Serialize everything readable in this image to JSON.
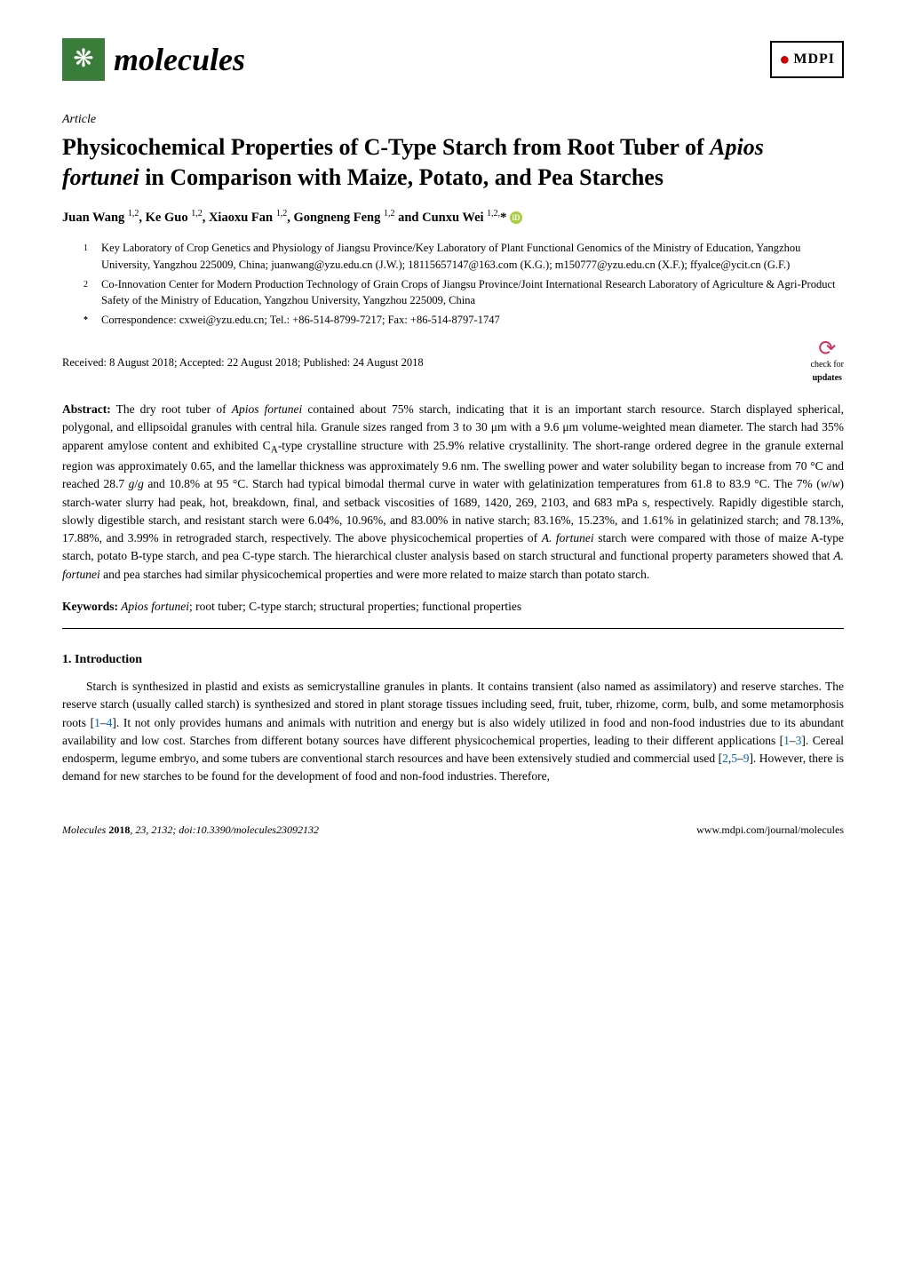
{
  "header": {
    "journal_name": "molecules",
    "publisher": "MDPI"
  },
  "article": {
    "type": "Article",
    "title_part1": "Physicochemical Properties of C-Type Starch from Root Tuber of ",
    "title_italic": "Apios fortunei",
    "title_part2": " in Comparison with Maize, Potato, and Pea Starches",
    "authors_line": "Juan Wang ",
    "author1_sup": "1,2",
    "author2": ", Ke Guo ",
    "author2_sup": "1,2",
    "author3": ", Xiaoxu Fan ",
    "author3_sup": "1,2",
    "author4": ", Gongneng Feng ",
    "author4_sup": "1,2",
    "author5": " and Cunxu Wei ",
    "author5_sup": "1,2,"
  },
  "affiliations": {
    "a1_num": "1",
    "a1_text": "Key Laboratory of Crop Genetics and Physiology of Jiangsu Province/Key Laboratory of Plant Functional Genomics of the Ministry of Education, Yangzhou University, Yangzhou 225009, China; juanwang@yzu.edu.cn (J.W.); 18115657147@163.com (K.G.); m150777@yzu.edu.cn (X.F.); ffyalce@ycit.cn (G.F.)",
    "a2_num": "2",
    "a2_text": "Co-Innovation Center for Modern Production Technology of Grain Crops of Jiangsu Province/Joint International Research Laboratory of Agriculture & Agri-Product Safety of the Ministry of Education, Yangzhou University, Yangzhou 225009, China",
    "corr_sym": "*",
    "corr_text": "Correspondence: cxwei@yzu.edu.cn; Tel.: +86-514-8799-7217; Fax: +86-514-8797-1747"
  },
  "dates": "Received: 8 August 2018; Accepted: 22 August 2018; Published: 24 August 2018",
  "check_updates": {
    "line1": "check for",
    "line2": "updates"
  },
  "abstract": {
    "label": "Abstract:",
    "p1": " The dry root tuber of ",
    "i1": "Apios fortunei",
    "p2": " contained about 75% starch, indicating that it is an important starch resource. Starch displayed spherical, polygonal, and ellipsoidal granules with central hila. Granule sizes ranged from 3 to 30 μm with a 9.6 μm volume-weighted mean diameter. The starch had 35% apparent amylose content and exhibited C",
    "sub1": "A",
    "p3": "-type crystalline structure with 25.9% relative crystallinity. The short-range ordered degree in the granule external region was approximately 0.65, and the lamellar thickness was approximately 9.6 nm. The swelling power and water solubility began to increase from 70 °C and reached 28.7 ",
    "i2": "g",
    "p4": "/",
    "i3": "g",
    "p5": " and 10.8% at 95 °C. Starch had typical bimodal thermal curve in water with gelatinization temperatures from 61.8 to 83.9 °C. The 7% (",
    "i4": "w",
    "p6": "/",
    "i5": "w",
    "p7": ") starch-water slurry had peak, hot, breakdown, final, and setback viscosities of 1689, 1420, 269, 2103, and 683 mPa s, respectively. Rapidly digestible starch, slowly digestible starch, and resistant starch were 6.04%, 10.96%, and 83.00% in native starch; 83.16%, 15.23%, and 1.61% in gelatinized starch; and 78.13%, 17.88%, and 3.99% in retrograded starch, respectively. The above physicochemical properties of ",
    "i6": "A. fortunei",
    "p8": " starch were compared with those of maize A-type starch, potato B-type starch, and pea C-type starch. The hierarchical cluster analysis based on starch structural and functional property parameters showed that ",
    "i7": "A. fortunei",
    "p9": " and pea starches had similar physicochemical properties and were more related to maize starch than potato starch."
  },
  "keywords": {
    "label": "Keywords:",
    "text_i1": " Apios fortunei",
    "text": "; root tuber; C-type starch; structural properties; functional properties"
  },
  "section1": {
    "heading": "1. Introduction",
    "p1a": "Starch is synthesized in plastid and exists as semicrystalline granules in plants. It contains transient (also named as assimilatory) and reserve starches. The reserve starch (usually called starch) is synthesized and stored in plant storage tissues including seed, fruit, tuber, rhizome, corm, bulb, and some metamorphosis roots [",
    "ref1": "1",
    "p1b": "–",
    "ref2": "4",
    "p1c": "]. It not only provides humans and animals with nutrition and energy but is also widely utilized in food and non-food industries due to its abundant availability and low cost. Starches from different botany sources have different physicochemical properties, leading to their different applications [",
    "ref3": "1",
    "p1d": "–",
    "ref4": "3",
    "p1e": "]. Cereal endosperm, legume embryo, and some tubers are conventional starch resources and have been extensively studied and commercial used [",
    "ref5": "2",
    "p1f": ",",
    "ref6": "5",
    "p1g": "–",
    "ref7": "9",
    "p1h": "]. However, there is demand for new starches to be found for the development of food and non-food industries. Therefore,"
  },
  "footer": {
    "left_i": "Molecules ",
    "left_b": "2018",
    "left_rest": ", 23, 2132; doi:10.3390/molecules23092132",
    "right": "www.mdpi.com/journal/molecules"
  }
}
